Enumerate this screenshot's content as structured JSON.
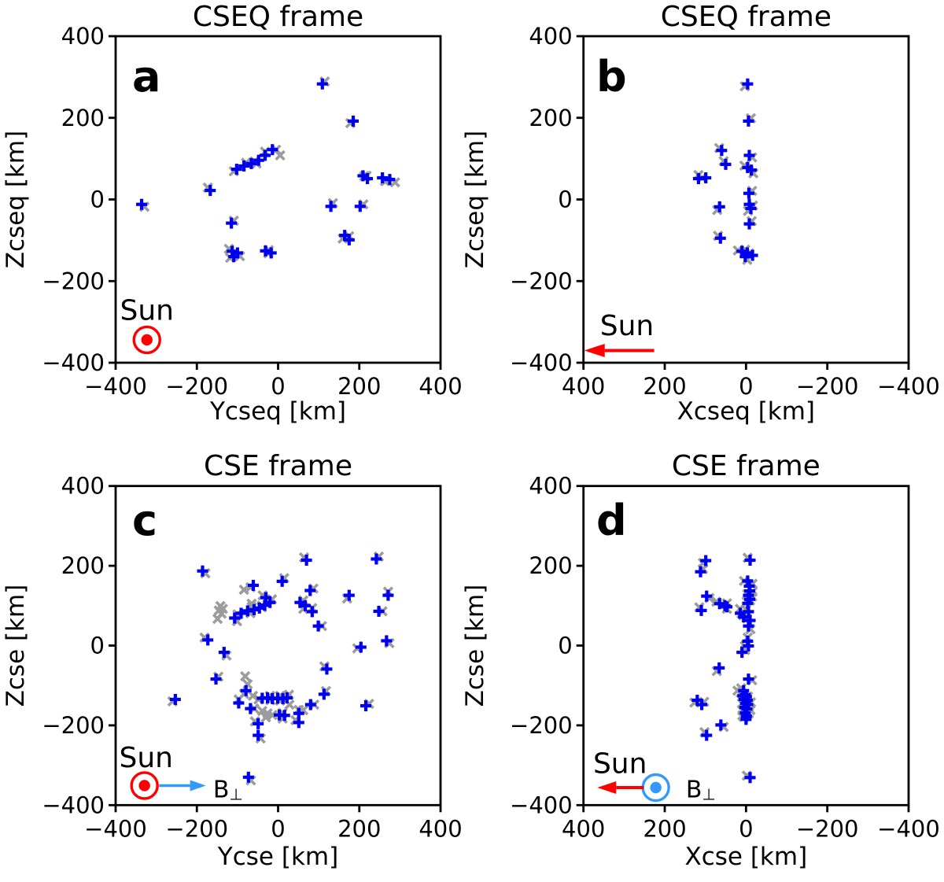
{
  "figure": {
    "background": "#ffffff",
    "colors": {
      "blue": "#0000f0",
      "gray": "#9c9c9c",
      "red": "#ff0000",
      "light_blue": "#3399ff",
      "text": "#000000",
      "letter": "#221815"
    }
  },
  "chart_data": {
    "type": "scatter",
    "gray_offset_cycle": [
      [
        7,
        -6
      ],
      [
        -6,
        7
      ],
      [
        6,
        6
      ],
      [
        -7,
        -5
      ],
      [
        5,
        8
      ],
      [
        8,
        5
      ],
      [
        -5,
        -8
      ],
      [
        0,
        9
      ],
      [
        9,
        0
      ],
      [
        -8,
        6
      ],
      [
        6,
        -8
      ],
      [
        -9,
        -3
      ]
    ],
    "panels": [
      {
        "id": "a",
        "letter": "a",
        "title": "CSEQ frame",
        "xlabel": "Ycseq [km]",
        "ylabel": "Zcseq [km]",
        "x_reversed": false,
        "xlim": [
          -400,
          400
        ],
        "ylim": [
          -400,
          400
        ],
        "xtick_values": [
          -400,
          -200,
          0,
          200,
          400
        ],
        "xtick_labels": [
          "−400",
          "−200",
          "0",
          "200",
          "400"
        ],
        "ytick_values": [
          400,
          200,
          0,
          -200,
          -400
        ],
        "ytick_labels": [
          "400",
          "200",
          "0",
          "−200",
          "−400"
        ],
        "blue_points": [
          [
            -336,
            -12
          ],
          [
            -167,
            22
          ],
          [
            -115,
            -58
          ],
          [
            -102,
            74
          ],
          [
            -84,
            82
          ],
          [
            -66,
            88
          ],
          [
            -48,
            96
          ],
          [
            -32,
            108
          ],
          [
            -14,
            122
          ],
          [
            -113,
            -127
          ],
          [
            -100,
            -131
          ],
          [
            -109,
            -140
          ],
          [
            -31,
            -126
          ],
          [
            -17,
            -131
          ],
          [
            109,
            283
          ],
          [
            185,
            192
          ],
          [
            130,
            -17
          ],
          [
            202,
            -17
          ],
          [
            164,
            -88
          ],
          [
            175,
            -99
          ],
          [
            209,
            58
          ],
          [
            220,
            51
          ],
          [
            257,
            53
          ],
          [
            275,
            49
          ]
        ],
        "gray_extra_points": [
          [
            5,
            108
          ],
          [
            288,
            42
          ]
        ],
        "annotations": {
          "sun_label": {
            "text": "Sun",
            "x": -323,
            "z": -295,
            "anchor": "middle",
            "color": "red"
          },
          "sun_symbol": {
            "type": "circle-dot",
            "x": -323,
            "z": -344,
            "color": "red"
          }
        }
      },
      {
        "id": "b",
        "letter": "b",
        "title": "CSEQ frame",
        "xlabel": "Xcseq [km]",
        "ylabel": "Zcseq [km]",
        "x_reversed": true,
        "xlim": [
          -400,
          400
        ],
        "ylim": [
          -400,
          400
        ],
        "xtick_values": [
          400,
          200,
          0,
          -200,
          -400
        ],
        "xtick_labels": [
          "400",
          "200",
          "0",
          "−200",
          "−400"
        ],
        "ytick_values": [
          400,
          200,
          0,
          -200,
          -400
        ],
        "ytick_labels": [
          "400",
          "200",
          "0",
          "−200",
          "−400"
        ],
        "blue_points": [
          [
            -4,
            283
          ],
          [
            -6,
            192
          ],
          [
            60,
            120
          ],
          [
            -8,
            108
          ],
          [
            50,
            86
          ],
          [
            -4,
            78
          ],
          [
            -13,
            72
          ],
          [
            117,
            51
          ],
          [
            99,
            53
          ],
          [
            -7,
            15
          ],
          [
            65,
            -18
          ],
          [
            -8,
            -12
          ],
          [
            -12,
            -22
          ],
          [
            -8,
            -60
          ],
          [
            63,
            -95
          ],
          [
            10,
            -127
          ],
          [
            -3,
            -131
          ],
          [
            -16,
            -137
          ],
          [
            2,
            -140
          ]
        ],
        "gray_extra_points": [
          [
            20,
            -125
          ]
        ],
        "annotations": {
          "sun_label": {
            "text": "Sun",
            "x": 293,
            "z": -333,
            "anchor": "middle",
            "color": "red"
          },
          "arrow": {
            "x1": 226,
            "z1": -370,
            "x2": 398,
            "z2": -370,
            "color": "red",
            "head": 26,
            "halfwidth": 8.5,
            "stroke": 4
          }
        }
      },
      {
        "id": "c",
        "letter": "c",
        "title": "CSE frame",
        "xlabel": "Ycse [km]",
        "ylabel": "Zcse [km]",
        "x_reversed": false,
        "xlim": [
          -400,
          400
        ],
        "ylim": [
          -400,
          400
        ],
        "xtick_values": [
          -400,
          -200,
          0,
          200,
          400
        ],
        "xtick_labels": [
          "−400",
          "−200",
          "0",
          "200",
          "400"
        ],
        "ytick_values": [
          400,
          200,
          0,
          -200,
          -400
        ],
        "ytick_labels": [
          "400",
          "200",
          "0",
          "−200",
          "−400"
        ],
        "blue_points": [
          [
            -186,
            187
          ],
          [
            70,
            214
          ],
          [
            242,
            217
          ],
          [
            -61,
            151
          ],
          [
            10,
            161
          ],
          [
            79,
            138
          ],
          [
            175,
            126
          ],
          [
            271,
            126
          ],
          [
            248,
            86
          ],
          [
            -30,
            120
          ],
          [
            -107,
            69
          ],
          [
            -91,
            81
          ],
          [
            -75,
            87
          ],
          [
            -59,
            90
          ],
          [
            -46,
            94
          ],
          [
            -33,
            101
          ],
          [
            -20,
            108
          ],
          [
            54,
            108
          ],
          [
            67,
            100
          ],
          [
            84,
            85
          ],
          [
            99,
            49
          ],
          [
            -173,
            14
          ],
          [
            -133,
            -17
          ],
          [
            204,
            -4
          ],
          [
            267,
            12
          ],
          [
            120,
            -59
          ],
          [
            -153,
            -84
          ],
          [
            -253,
            -135
          ],
          [
            113,
            -122
          ],
          [
            216,
            -151
          ],
          [
            -79,
            -113
          ],
          [
            -97,
            -144
          ],
          [
            -68,
            -158
          ],
          [
            -49,
            -196
          ],
          [
            -49,
            -225
          ],
          [
            -39,
            -132
          ],
          [
            -26,
            -131
          ],
          [
            -14,
            -133
          ],
          [
            -1,
            -132
          ],
          [
            12,
            -133
          ],
          [
            22,
            -131
          ],
          [
            3,
            -174
          ],
          [
            16,
            -175
          ],
          [
            51,
            -170
          ],
          [
            80,
            -148
          ],
          [
            51,
            -193
          ],
          [
            -73,
            -330
          ]
        ],
        "gray_extra_points": [
          [
            -84,
            140
          ],
          [
            -142,
            99
          ],
          [
            -139,
            80
          ],
          [
            -149,
            67
          ],
          [
            -146,
            88
          ],
          [
            -136,
            92
          ],
          [
            -65,
            105
          ],
          [
            -81,
            -77
          ],
          [
            -75,
            -97
          ],
          [
            -62,
            -126
          ],
          [
            -39,
            -164
          ],
          [
            -26,
            -170
          ],
          [
            -14,
            -174
          ],
          [
            -30,
            -180
          ],
          [
            28,
            -148
          ],
          [
            62,
            -162
          ]
        ],
        "annotations": {
          "sun_label": {
            "text": "Sun",
            "x": -325,
            "z": -305,
            "anchor": "middle",
            "color": "red"
          },
          "sun_symbol": {
            "type": "circle-dot",
            "x": -329,
            "z": -351,
            "color": "red"
          },
          "arrow": {
            "x1": -293,
            "z1": -351,
            "x2": -178,
            "z2": -351,
            "color": "light_blue",
            "head": 20,
            "halfwidth": 7,
            "stroke": 3.5
          },
          "b_label": {
            "main": "B",
            "sub": "⊥",
            "x": -160,
            "z": -381,
            "anchor": "start",
            "color": "light_blue"
          }
        }
      },
      {
        "id": "d",
        "letter": "d",
        "title": "CSE frame",
        "xlabel": "Xcse [km]",
        "ylabel": "Zcse [km]",
        "x_reversed": true,
        "xlim": [
          -400,
          400
        ],
        "ylim": [
          -400,
          400
        ],
        "xtick_values": [
          400,
          200,
          0,
          -200,
          -400
        ],
        "xtick_labels": [
          "400",
          "200",
          "0",
          "−200",
          "−400"
        ],
        "ytick_values": [
          400,
          200,
          0,
          -200,
          -400
        ],
        "ytick_labels": [
          "400",
          "200",
          "0",
          "−200",
          "−400"
        ],
        "blue_points": [
          [
            99,
            213
          ],
          [
            112,
            185
          ],
          [
            -10,
            214
          ],
          [
            97,
            124
          ],
          [
            110,
            88
          ],
          [
            65,
            105
          ],
          [
            52,
            100
          ],
          [
            47,
            97
          ],
          [
            -4,
            162
          ],
          [
            -8,
            149
          ],
          [
            -9,
            137
          ],
          [
            -6,
            126
          ],
          [
            -9,
            116
          ],
          [
            -4,
            106
          ],
          [
            -6,
            85
          ],
          [
            14,
            81
          ],
          [
            6,
            72
          ],
          [
            -10,
            63
          ],
          [
            -6,
            49
          ],
          [
            -4,
            11
          ],
          [
            -6,
            -1
          ],
          [
            10,
            -17
          ],
          [
            66,
            -56
          ],
          [
            -6,
            -84
          ],
          [
            120,
            -137
          ],
          [
            109,
            -148
          ],
          [
            6,
            -113
          ],
          [
            2,
            -123
          ],
          [
            8,
            -126
          ],
          [
            -1,
            -128
          ],
          [
            5,
            -135
          ],
          [
            -3,
            -137
          ],
          [
            1,
            -145
          ],
          [
            -4,
            -148
          ],
          [
            3,
            -155
          ],
          [
            -2,
            -159
          ],
          [
            2,
            -169
          ],
          [
            -1,
            -177
          ],
          [
            0,
            -185
          ],
          [
            62,
            -199
          ],
          [
            97,
            -225
          ],
          [
            -10,
            -331
          ]
        ],
        "gray_extra_points": [
          [
            21,
            -113
          ],
          [
            15,
            92
          ],
          [
            -16,
            135
          ]
        ],
        "annotations": {
          "sun_label": {
            "text": "Sun",
            "x": 310,
            "z": -320,
            "anchor": "middle",
            "color": "red"
          },
          "b_symbol": {
            "type": "circle-dot",
            "x": 222,
            "z": -356,
            "color": "light_blue"
          },
          "arrow": {
            "x1": 252,
            "z1": -356,
            "x2": 366,
            "z2": -356,
            "color": "red",
            "head": 24,
            "halfwidth": 8,
            "stroke": 4
          },
          "b_label": {
            "main": "B",
            "sub": "⊥",
            "x": 148,
            "z": -381,
            "anchor": "start",
            "color": "light_blue"
          }
        }
      }
    ]
  }
}
